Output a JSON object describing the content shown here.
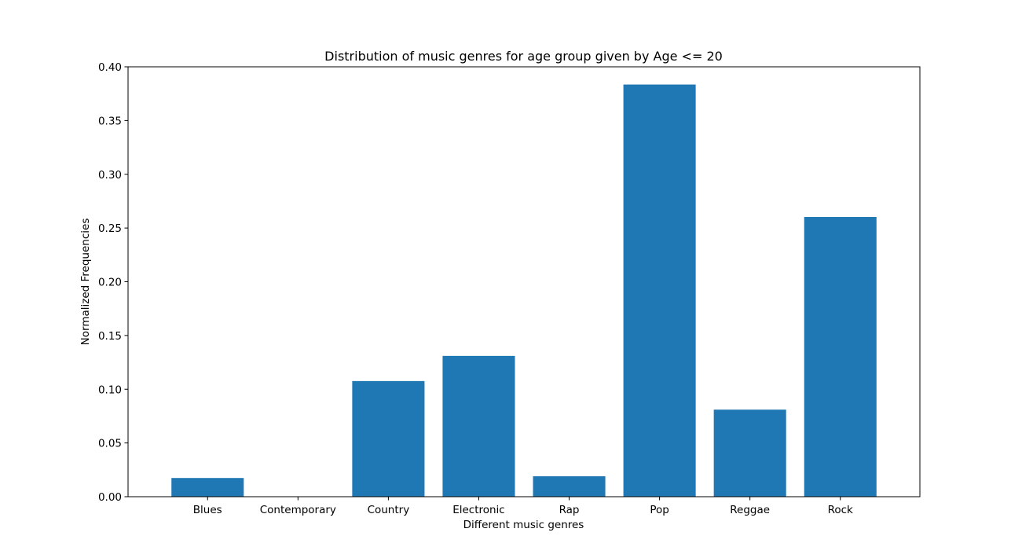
{
  "chart_data": {
    "type": "bar",
    "title": "Distribution of music genres for age group given by Age <= 20",
    "xlabel": "Different music genres",
    "ylabel": "Normalized Frequencies",
    "categories": [
      "Blues",
      "Contemporary",
      "Country",
      "Electronic",
      "Rap",
      "Pop",
      "Reggae",
      "Rock"
    ],
    "values": [
      0.0174,
      0.0,
      0.1076,
      0.131,
      0.019,
      0.3835,
      0.081,
      0.2603
    ],
    "ylim": [
      0,
      0.4
    ],
    "yticks": [
      0.0,
      0.05,
      0.1,
      0.15,
      0.2,
      0.25,
      0.3,
      0.35,
      0.4
    ],
    "ytick_labels": [
      "0.00",
      "0.05",
      "0.10",
      "0.15",
      "0.20",
      "0.25",
      "0.30",
      "0.35",
      "0.40"
    ],
    "bar_color": "#1f77b4",
    "grid": false,
    "legend": "none"
  }
}
